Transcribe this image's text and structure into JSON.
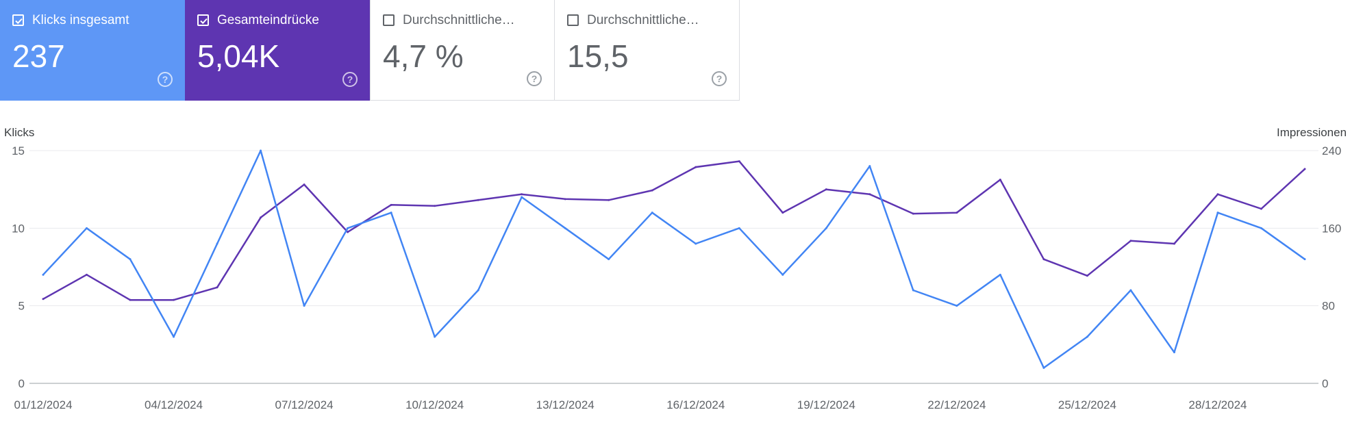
{
  "metrics": [
    {
      "label": "Klicks insgesamt",
      "value": "237",
      "checked": true,
      "color": "#5e97f6"
    },
    {
      "label": "Gesamteindrücke",
      "value": "5,04K",
      "checked": true,
      "color": "#5e35b1"
    },
    {
      "label": "Durchschnittliche…",
      "value": "4,7 %",
      "checked": false
    },
    {
      "label": "Durchschnittliche…",
      "value": "15,5",
      "checked": false
    }
  ],
  "chart_data": {
    "type": "line",
    "x": [
      "01/12/2024",
      "02/12/2024",
      "03/12/2024",
      "04/12/2024",
      "05/12/2024",
      "06/12/2024",
      "07/12/2024",
      "08/12/2024",
      "09/12/2024",
      "10/12/2024",
      "11/12/2024",
      "12/12/2024",
      "13/12/2024",
      "14/12/2024",
      "15/12/2024",
      "16/12/2024",
      "17/12/2024",
      "18/12/2024",
      "19/12/2024",
      "20/12/2024",
      "21/12/2024",
      "22/12/2024",
      "23/12/2024",
      "24/12/2024",
      "25/12/2024",
      "26/12/2024",
      "27/12/2024",
      "28/12/2024",
      "29/12/2024",
      "30/12/2024"
    ],
    "x_tick_labels": [
      "01/12/2024",
      "04/12/2024",
      "07/12/2024",
      "10/12/2024",
      "13/12/2024",
      "16/12/2024",
      "19/12/2024",
      "22/12/2024",
      "25/12/2024",
      "28/12/2024"
    ],
    "y_left": {
      "label": "Klicks",
      "ticks": [
        0,
        5,
        10,
        15
      ],
      "ylim": [
        0,
        15
      ]
    },
    "y_right": {
      "label": "Impressionen",
      "ticks": [
        0,
        80,
        160,
        240
      ],
      "ylim": [
        0,
        240
      ]
    },
    "grid": true,
    "series": [
      {
        "axis": "left",
        "color": "#4285f4",
        "values": [
          7,
          10,
          8,
          3,
          9,
          15,
          5,
          10,
          11,
          3,
          6,
          12,
          10,
          8,
          11,
          9,
          10,
          7,
          10,
          14,
          6,
          5,
          7,
          1,
          3,
          6,
          2,
          11,
          10,
          8
        ]
      },
      {
        "axis": "right",
        "color": "#5e35b1",
        "values": [
          87,
          112,
          86,
          86,
          99,
          171,
          205,
          156,
          184,
          183,
          189,
          195,
          190,
          189,
          199,
          223,
          229,
          176,
          200,
          195,
          175,
          176,
          210,
          128,
          111,
          147,
          144,
          195,
          180,
          221
        ]
      }
    ]
  }
}
